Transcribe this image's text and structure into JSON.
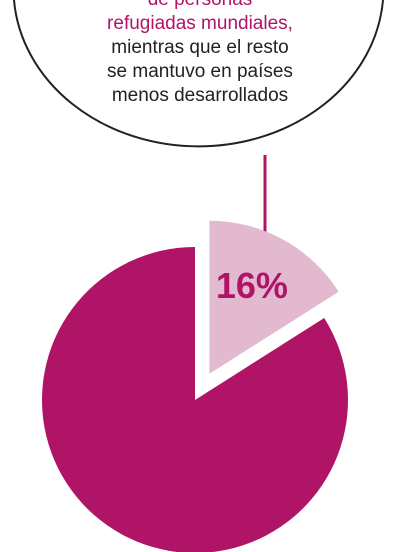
{
  "callout": {
    "line1": "de personas",
    "line2": "refugiadas mundiales,",
    "line3": "mientras que el resto",
    "line4": "se mantuvo en países",
    "line5": "menos desarrollados"
  },
  "colors": {
    "accent": "#b01467",
    "light": "#e2b9cf",
    "text": "#222222"
  },
  "chart_data": {
    "type": "pie",
    "slices": [
      {
        "label": "16%",
        "value": 16,
        "color": "#e2b9cf",
        "exploded": true
      },
      {
        "label": "",
        "value": 84,
        "color": "#b01467",
        "exploded": false
      }
    ]
  }
}
